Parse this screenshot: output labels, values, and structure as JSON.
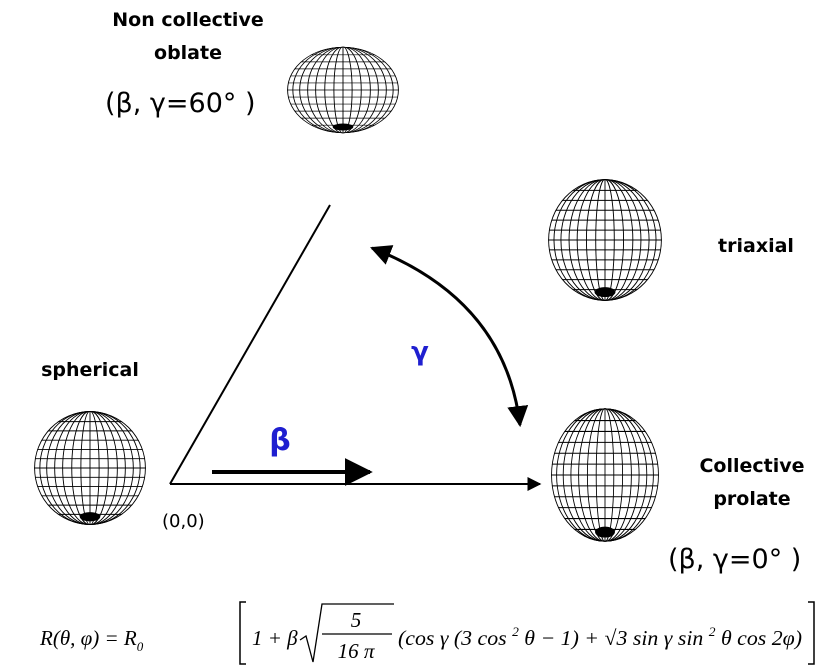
{
  "labels": {
    "oblate": [
      "Non collective",
      "oblate"
    ],
    "oblate_coords": "(β, γ=60°  )",
    "triaxial": "triaxial",
    "spherical": "spherical",
    "gamma": "γ",
    "beta": "β",
    "origin": "(0,0)",
    "prolate": [
      "Collective",
      "prolate"
    ],
    "prolate_coords": "(β, γ=0°  )"
  },
  "formula": {
    "lhs": "R(θ, φ) = R",
    "lhs_sub": "0",
    "one_beta": "1 + β",
    "num": "5",
    "den": "16 π",
    "parts": [
      "(cos  γ (3 cos ",
      "2",
      " θ − 1) + √3 sin  γ sin ",
      "2",
      " θ cos  2φ)"
    ]
  }
}
